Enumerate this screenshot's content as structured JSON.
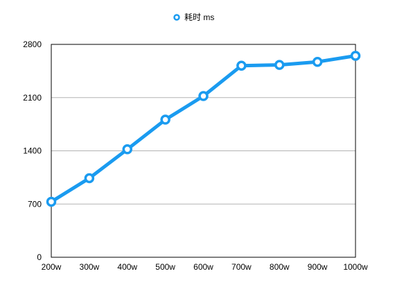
{
  "chart_data": {
    "type": "line",
    "categories": [
      "200w",
      "300w",
      "400w",
      "500w",
      "600w",
      "700w",
      "800w",
      "900w",
      "1000w"
    ],
    "series": [
      {
        "name": "耗时 ms",
        "values": [
          730,
          1040,
          1420,
          1810,
          2120,
          2520,
          2530,
          2570,
          2650
        ]
      }
    ],
    "y_ticks": [
      "0",
      "700",
      "1400",
      "2100",
      "2800"
    ],
    "ylim": [
      0,
      2800
    ],
    "grid": true,
    "legend_position": "top-center",
    "colors": {
      "series": "#1a9bf0",
      "grid": "#b3b3b3",
      "axis": "#000000"
    }
  }
}
